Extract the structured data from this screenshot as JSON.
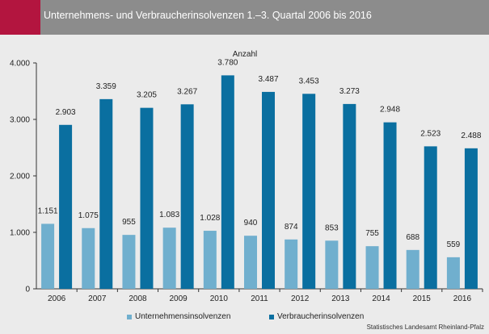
{
  "header": {
    "title": "Unternehmens- und Verbraucherinsolvenzen 1.–3. Quartal 2006 bis 2016"
  },
  "source": "Statistisches Landesamt Rheinland-Pfalz",
  "colors": {
    "header_bg": "#8c8c8c",
    "accent": "#b3153f",
    "series1": "#70afce",
    "series2": "#0a6fa0"
  },
  "chart_data": {
    "type": "bar",
    "title": "",
    "ylabel": "Anzahl",
    "xlabel": "",
    "ylim": [
      0,
      4000
    ],
    "yticks": [
      0,
      1000,
      2000,
      3000,
      4000
    ],
    "yticklabels": [
      "0",
      "1.000",
      "2.000",
      "3.000",
      "4.000"
    ],
    "categories": [
      "2006",
      "2007",
      "2008",
      "2009",
      "2010",
      "2011",
      "2012",
      "2013",
      "2014",
      "2015",
      "2016"
    ],
    "series": [
      {
        "name": "Unternehmensinsolvenzen",
        "color": "#70afce",
        "values": [
          1151,
          1075,
          955,
          1083,
          1028,
          940,
          874,
          853,
          755,
          688,
          559
        ],
        "labels": [
          "1.151",
          "1.075",
          "955",
          "1.083",
          "1.028",
          "940",
          "874",
          "853",
          "755",
          "688",
          "559"
        ]
      },
      {
        "name": "Verbraucherinsolvenzen",
        "color": "#0a6fa0",
        "values": [
          2903,
          3359,
          3205,
          3267,
          3780,
          3487,
          3453,
          3273,
          2948,
          2523,
          2488
        ],
        "labels": [
          "2.903",
          "3.359",
          "3.205",
          "3.267",
          "3.780",
          "3.487",
          "3.453",
          "3.273",
          "2.948",
          "2.523",
          "2.488"
        ]
      }
    ],
    "grid": false,
    "legend_position": "bottom"
  }
}
